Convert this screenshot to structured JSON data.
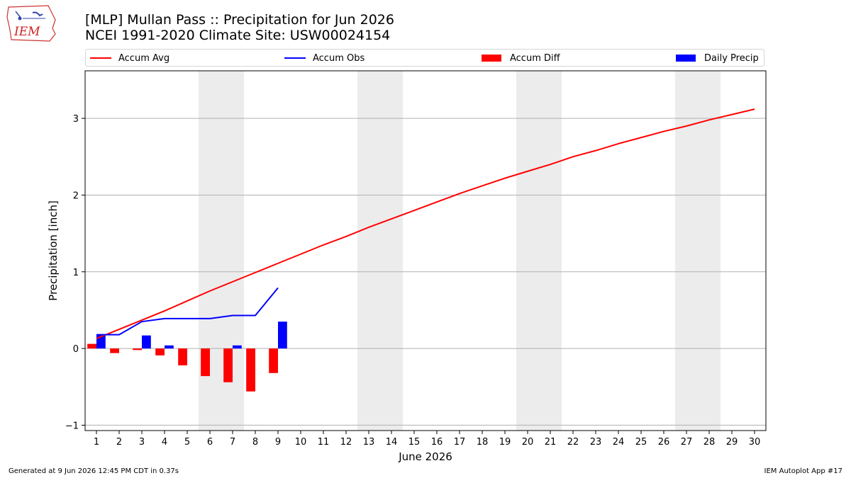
{
  "header": {
    "title_line1": "[MLP] Mullan Pass :: Precipitation for Jun 2026",
    "title_line2": "NCEI 1991-2020 Climate Site: USW00024154",
    "logo_text": "IEM"
  },
  "footer": {
    "generated": "Generated at 9 Jun 2026 12:45 PM CDT in 0.37s",
    "app": "IEM Autoplot App #17"
  },
  "colors": {
    "avg": "#ff0000",
    "obs": "#0000ff",
    "diff": "#ff0000",
    "daily": "#0000ff",
    "weekend_shade": "#ececec",
    "grid": "#b0b0b0"
  },
  "chart_data": {
    "type": "bar",
    "xlabel": "June 2026",
    "ylabel": "Precipitation [inch]",
    "ylim": [
      -1.07,
      3.62
    ],
    "xlim": [
      0.5,
      30.5
    ],
    "yticks": [
      -1,
      0,
      1,
      2,
      3
    ],
    "grid": true,
    "legend_placement": "top, above plot",
    "weekend_days": [
      6,
      7,
      13,
      14,
      20,
      21,
      27,
      28
    ],
    "days": [
      1,
      2,
      3,
      4,
      5,
      6,
      7,
      8,
      9,
      10,
      11,
      12,
      13,
      14,
      15,
      16,
      17,
      18,
      19,
      20,
      21,
      22,
      23,
      24,
      25,
      26,
      27,
      28,
      29,
      30
    ],
    "series": [
      {
        "name": "Accum Avg",
        "kind": "line",
        "values": [
          0.13,
          0.25,
          0.37,
          0.49,
          0.62,
          0.75,
          0.87,
          0.99,
          1.11,
          1.23,
          1.35,
          1.46,
          1.58,
          1.69,
          1.8,
          1.91,
          2.02,
          2.12,
          2.22,
          2.31,
          2.4,
          2.5,
          2.58,
          2.67,
          2.75,
          2.83,
          2.9,
          2.98,
          3.05,
          3.12
        ]
      },
      {
        "name": "Accum Obs",
        "kind": "line",
        "values": [
          0.18,
          0.18,
          0.35,
          0.39,
          0.39,
          0.39,
          0.43,
          0.43,
          0.79
        ]
      },
      {
        "name": "Accum Diff",
        "kind": "bar",
        "values": [
          0.06,
          -0.06,
          -0.02,
          -0.09,
          -0.22,
          -0.36,
          -0.44,
          -0.56,
          -0.32
        ]
      },
      {
        "name": "Daily Precip",
        "kind": "bar",
        "values": [
          0.18,
          0.0,
          0.17,
          0.04,
          0.0,
          0.0,
          0.04,
          0.0,
          0.35
        ]
      }
    ]
  }
}
